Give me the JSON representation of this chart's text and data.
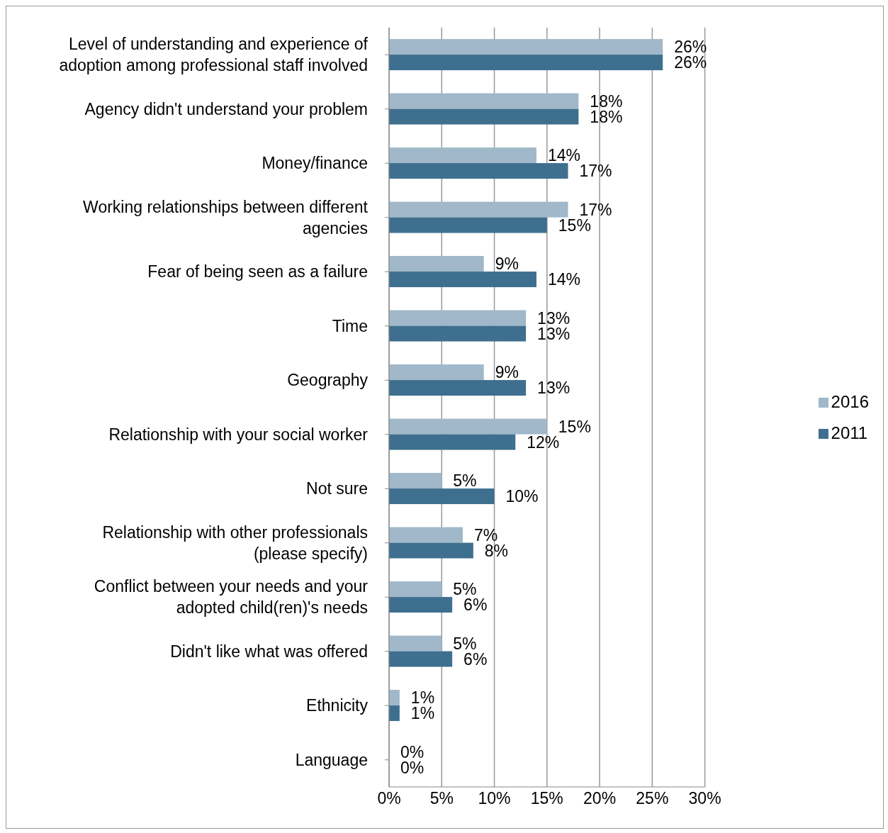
{
  "chart_data": {
    "type": "bar",
    "orientation": "horizontal",
    "categories": [
      "Level of understanding and experience of adoption among professional staff involved",
      "Agency didn't understand your problem",
      "Money/finance",
      "Working relationships between different agencies",
      "Fear of being seen as a failure",
      "Time",
      "Geography",
      "Relationship with your social worker",
      "Not sure",
      "Relationship with other professionals (please specify)",
      "Conflict between your needs and your adopted child(ren)'s needs",
      "Didn't like what was offered",
      "Ethnicity",
      "Language"
    ],
    "series": [
      {
        "name": "2016",
        "color": "#a0b8c9",
        "values": [
          26,
          18,
          14,
          17,
          9,
          13,
          9,
          15,
          5,
          7,
          5,
          5,
          1,
          0
        ],
        "value_labels": [
          "26%",
          "18%",
          "14%",
          "17%",
          "9%",
          "13%",
          "9%",
          "15%",
          "5%",
          "7%",
          "5%",
          "5%",
          "1%",
          "0%"
        ]
      },
      {
        "name": "2011",
        "color": "#3f6f8f",
        "values": [
          26,
          18,
          17,
          15,
          14,
          13,
          13,
          12,
          10,
          8,
          6,
          6,
          1,
          0
        ],
        "value_labels": [
          "26%",
          "18%",
          "17%",
          "15%",
          "14%",
          "13%",
          "13%",
          "12%",
          "10%",
          "8%",
          "6%",
          "6%",
          "1%",
          "0%"
        ]
      }
    ],
    "xlim": [
      0,
      30
    ],
    "xticks": [
      {
        "value": 0,
        "label": "0%"
      },
      {
        "value": 5,
        "label": "5%"
      },
      {
        "value": 10,
        "label": "10%"
      },
      {
        "value": 15,
        "label": "15%"
      },
      {
        "value": 20,
        "label": "20%"
      },
      {
        "value": 25,
        "label": "25%"
      },
      {
        "value": 30,
        "label": "30%"
      }
    ],
    "grid": "x",
    "legend": "right"
  }
}
